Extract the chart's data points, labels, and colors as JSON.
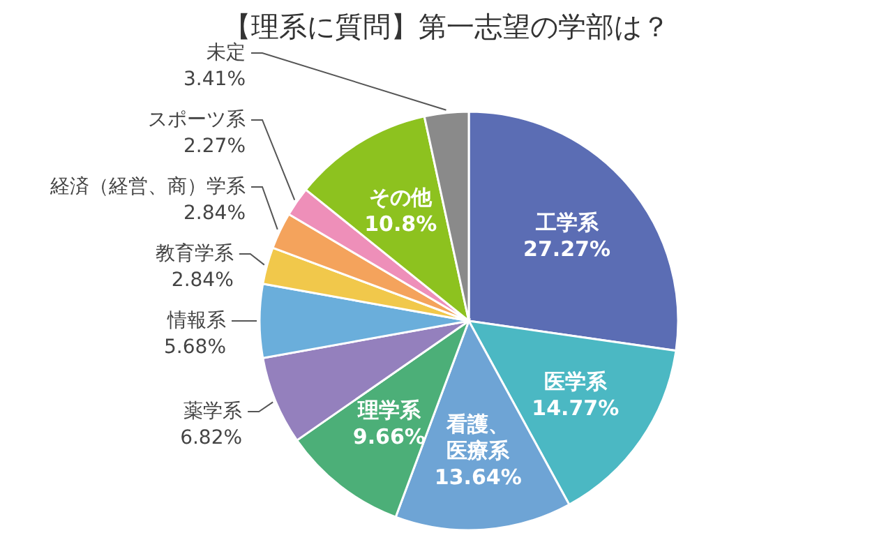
{
  "chart_data": {
    "type": "pie",
    "title": "【理系に質問】第一志望の学部は？",
    "categories": [
      "工学系",
      "医学系",
      "看護、医療系",
      "理学系",
      "薬学系",
      "情報系",
      "教育学系",
      "経済（経営、商）学系",
      "スポーツ系",
      "その他",
      "未定"
    ],
    "values": [
      27.27,
      14.77,
      13.64,
      9.66,
      6.82,
      5.68,
      2.84,
      2.84,
      2.27,
      10.8,
      3.41
    ],
    "colors": [
      "#5b6db4",
      "#4bb8c3",
      "#6ea4d5",
      "#4caf78",
      "#9480bd",
      "#6aaedb",
      "#f1c84b",
      "#f4a35c",
      "#ee8fb9",
      "#8dc21f",
      "#8a8a8a"
    ],
    "value_labels": [
      "27.27%",
      "14.77%",
      "13.64%",
      "9.66%",
      "6.82%",
      "5.68%",
      "2.84%",
      "2.84%",
      "2.27%",
      "10.8%",
      "3.41%"
    ]
  }
}
